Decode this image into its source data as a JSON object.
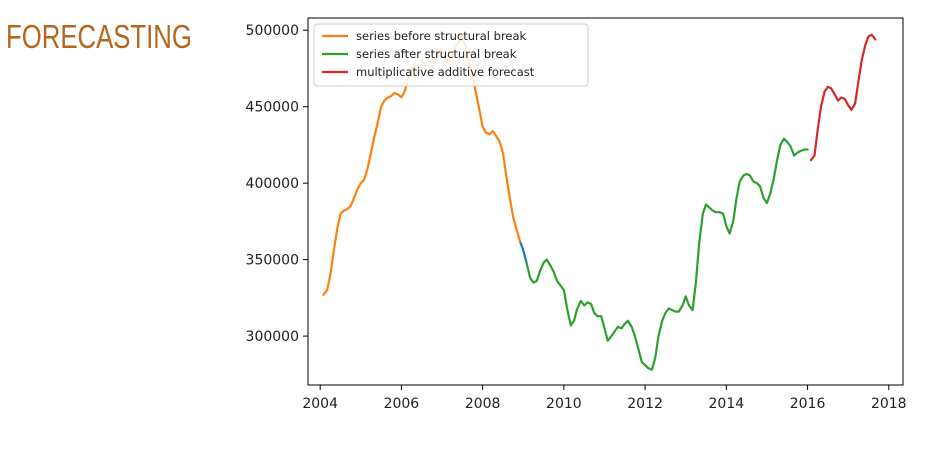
{
  "slide": {
    "title": "FORECASTING"
  },
  "chart_data": {
    "type": "line",
    "title": "",
    "xlabel": "",
    "ylabel": "",
    "xlim": [
      2003.7,
      2018.35
    ],
    "ylim": [
      268000,
      508000
    ],
    "xticks": [
      2004,
      2006,
      2008,
      2010,
      2012,
      2014,
      2016,
      2018
    ],
    "xtick_labels": [
      "2004",
      "2006",
      "2008",
      "2010",
      "2012",
      "2014",
      "2016",
      "2018"
    ],
    "yticks": [
      300000,
      350000,
      400000,
      450000,
      500000
    ],
    "ytick_labels": [
      "300000",
      "350000",
      "400000",
      "450000",
      "500000"
    ],
    "grid": false,
    "legend_position": "top-left",
    "series": [
      {
        "name": "",
        "color": "#1f77b4",
        "x": [
          2008.92,
          2009.0,
          2009.08
        ],
        "y": [
          362000,
          356000,
          348000
        ]
      },
      {
        "name": "series before structural break",
        "color": "#ff7f0e",
        "x": [
          2004.08,
          2004.17,
          2004.25,
          2004.33,
          2004.42,
          2004.5,
          2004.58,
          2004.67,
          2004.75,
          2004.83,
          2004.92,
          2005.0,
          2005.08,
          2005.17,
          2005.25,
          2005.33,
          2005.42,
          2005.5,
          2005.58,
          2005.67,
          2005.75,
          2005.83,
          2005.92,
          2006.0,
          2006.08,
          2006.17,
          2006.25,
          2006.33,
          2006.42,
          2006.5,
          2006.58,
          2006.67,
          2006.75,
          2006.83,
          2006.92,
          2007.0,
          2007.08,
          2007.17,
          2007.25,
          2007.33,
          2007.42,
          2007.5,
          2007.58,
          2007.67,
          2007.75,
          2007.83,
          2007.92,
          2008.0,
          2008.08,
          2008.17,
          2008.25,
          2008.33,
          2008.42,
          2008.5,
          2008.58,
          2008.67,
          2008.75,
          2008.83,
          2008.92
        ],
        "y": [
          327000,
          330000,
          340000,
          355000,
          370000,
          380000,
          382000,
          383000,
          385000,
          390000,
          396000,
          400000,
          402000,
          410000,
          420000,
          430000,
          440000,
          450000,
          454000,
          456000,
          457000,
          459000,
          458000,
          456000,
          460000,
          470000,
          475000,
          478000,
          476000,
          480000,
          478000,
          476000,
          474000,
          480000,
          486000,
          488000,
          482000,
          480000,
          484000,
          490000,
          492000,
          495000,
          490000,
          478000,
          470000,
          460000,
          448000,
          437000,
          433000,
          432000,
          434000,
          431000,
          427000,
          420000,
          405000,
          390000,
          378000,
          370000,
          362000
        ]
      },
      {
        "name": "series after structural break",
        "color": "#2ca02c",
        "x": [
          2009.08,
          2009.17,
          2009.25,
          2009.33,
          2009.42,
          2009.5,
          2009.58,
          2009.67,
          2009.75,
          2009.83,
          2009.92,
          2010.0,
          2010.08,
          2010.17,
          2010.25,
          2010.33,
          2010.42,
          2010.5,
          2010.58,
          2010.67,
          2010.75,
          2010.83,
          2010.92,
          2011.0,
          2011.08,
          2011.17,
          2011.25,
          2011.33,
          2011.42,
          2011.5,
          2011.58,
          2011.67,
          2011.75,
          2011.83,
          2011.92,
          2012.0,
          2012.08,
          2012.17,
          2012.25,
          2012.33,
          2012.42,
          2012.5,
          2012.58,
          2012.67,
          2012.75,
          2012.83,
          2012.92,
          2013.0,
          2013.08,
          2013.17,
          2013.25,
          2013.33,
          2013.42,
          2013.5,
          2013.58,
          2013.67,
          2013.75,
          2013.83,
          2013.92,
          2014.0,
          2014.08,
          2014.17,
          2014.25,
          2014.33,
          2014.42,
          2014.5,
          2014.58,
          2014.67,
          2014.75,
          2014.83,
          2014.92,
          2015.0,
          2015.08,
          2015.17,
          2015.25,
          2015.33,
          2015.42,
          2015.5,
          2015.58,
          2015.67,
          2015.75,
          2015.83,
          2015.92,
          2016.0
        ],
        "y": [
          348000,
          338000,
          335000,
          336000,
          343000,
          348000,
          350000,
          346000,
          342000,
          336000,
          333000,
          330000,
          318000,
          307000,
          310000,
          318000,
          323000,
          320000,
          322000,
          321000,
          315000,
          313000,
          313000,
          305000,
          297000,
          300000,
          303000,
          306000,
          305000,
          308000,
          310000,
          306000,
          300000,
          292000,
          283000,
          281000,
          279000,
          278000,
          286000,
          300000,
          310000,
          315000,
          318000,
          317000,
          316000,
          316000,
          320000,
          326000,
          320000,
          317000,
          335000,
          360000,
          380000,
          386000,
          384000,
          382000,
          381000,
          381000,
          380000,
          372000,
          367000,
          375000,
          390000,
          401000,
          405000,
          406000,
          405000,
          401000,
          400000,
          398000,
          390000,
          387000,
          393000,
          403000,
          415000,
          425000,
          429000,
          427000,
          424000,
          418000,
          420000,
          421000,
          422000,
          422000
        ]
      },
      {
        "name": "multiplicative additive forecast",
        "color": "#d62728",
        "x": [
          2016.08,
          2016.17,
          2016.25,
          2016.33,
          2016.42,
          2016.5,
          2016.58,
          2016.67,
          2016.75,
          2016.83,
          2016.92,
          2017.0,
          2017.08,
          2017.17,
          2017.25,
          2017.33,
          2017.42,
          2017.5,
          2017.58,
          2017.67
        ],
        "y": [
          415000,
          418000,
          435000,
          450000,
          460000,
          463000,
          462000,
          458000,
          454000,
          456000,
          455000,
          451000,
          448000,
          452000,
          466000,
          480000,
          490000,
          496000,
          497000,
          494000
        ]
      }
    ]
  }
}
